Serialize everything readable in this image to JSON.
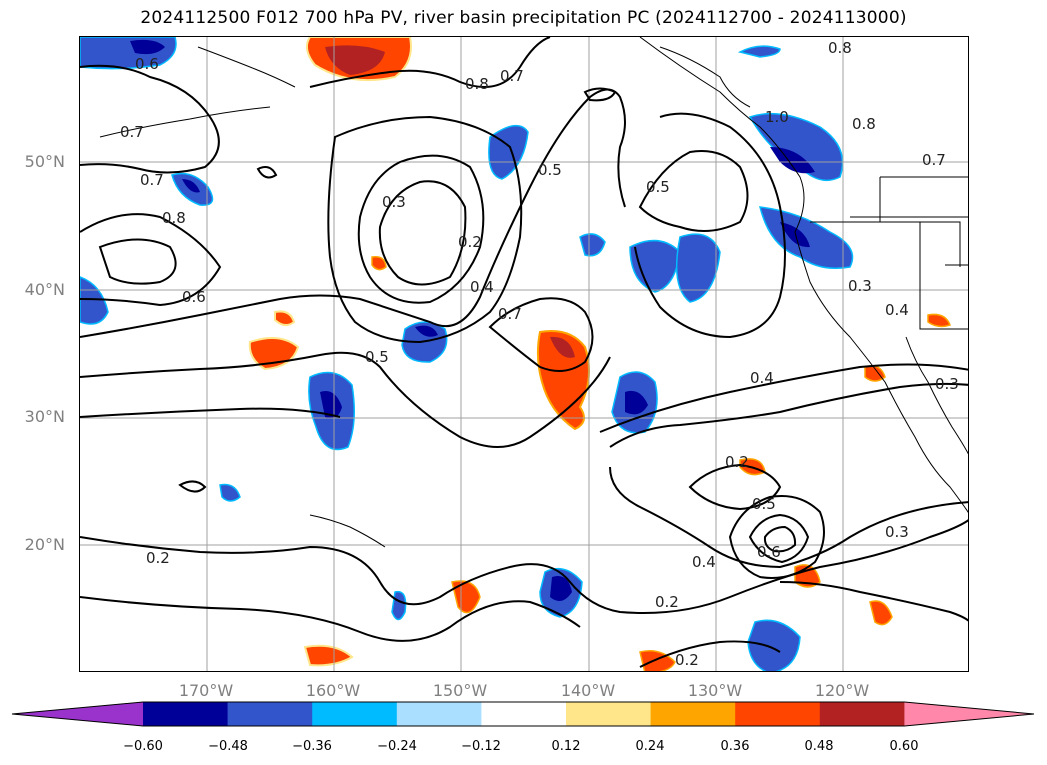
{
  "title": "2024112500 F012 700 hPa PV, river basin precipitation PC (2024112700 - 2024113000)",
  "map": {
    "lat_labels": [
      "50°N",
      "40°N",
      "30°N",
      "20°N"
    ],
    "lon_labels": [
      "170°W",
      "160°W",
      "150°W",
      "140°W",
      "130°W",
      "120°W"
    ],
    "contour_labels": [
      "0.6",
      "0.8",
      "0.7",
      "0.8",
      "1.0",
      "0.8",
      "0.7",
      "0.7",
      "0.7",
      "0.8",
      "0.5",
      "0.3",
      "0.2",
      "0.5",
      "0.6",
      "0.4",
      "0.7",
      "0.3",
      "0.4",
      "0.5",
      "0.4",
      "0.3",
      "0.2",
      "0.5",
      "0.6",
      "0.4",
      "0.3",
      "0.2",
      "0.2",
      "0.2"
    ],
    "colors": {
      "contour": "#000000",
      "grid": "#a0a0a0",
      "coast": "#000000"
    }
  },
  "colorbar": {
    "ticks": [
      "−0.60",
      "−0.48",
      "−0.36",
      "−0.24",
      "−0.12",
      "0.12",
      "0.24",
      "0.36",
      "0.48",
      "0.60"
    ],
    "colors": [
      "#9933cc",
      "#000099",
      "#3355cc",
      "#00bbff",
      "#aadfff",
      "#ffffff",
      "#ffe68a",
      "#ffa500",
      "#ff4500",
      "#b22222",
      "#ff88aa"
    ]
  }
}
